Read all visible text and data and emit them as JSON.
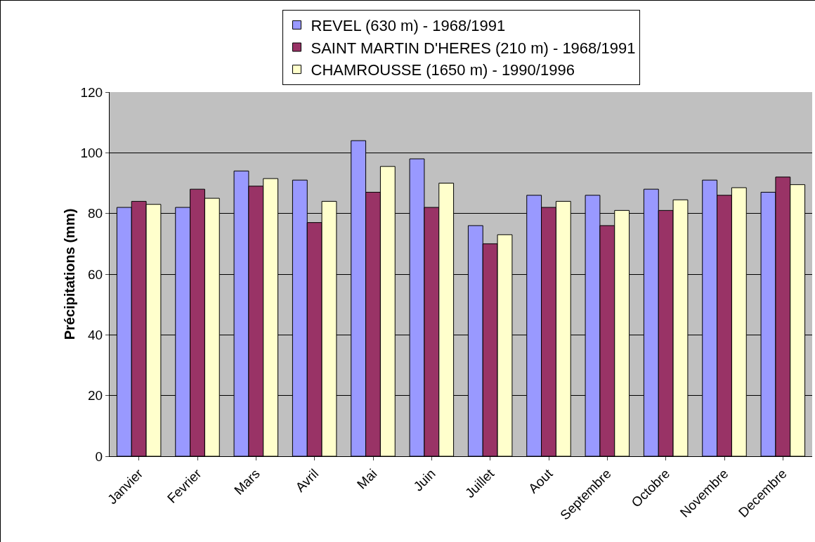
{
  "chart_data": {
    "type": "bar",
    "ylabel": "Précipitations (mm)",
    "categories": [
      "Janvier",
      "Fevrier",
      "Mars",
      "Avril",
      "Mai",
      "Juin",
      "Juillet",
      "Aout",
      "Septembre",
      "Octobre",
      "Novembre",
      "Decembre"
    ],
    "series": [
      {
        "name": "REVEL (630 m) - 1968/1991",
        "color": "#9999ff",
        "values": [
          82,
          82,
          94,
          91,
          104,
          98,
          76,
          86,
          86,
          88,
          91,
          87
        ]
      },
      {
        "name": "SAINT MARTIN D'HERES (210 m) - 1968/1991",
        "color": "#993366",
        "values": [
          84,
          88,
          89,
          77,
          87,
          82,
          70,
          82,
          76,
          81,
          86,
          92
        ]
      },
      {
        "name": "CHAMROUSSE (1650 m) - 1990/1996",
        "color": "#ffffcc",
        "values": [
          83,
          85,
          91.5,
          84,
          95.5,
          90,
          73,
          84,
          81,
          84.5,
          88.5,
          89.5
        ]
      }
    ],
    "ylim": [
      0,
      120
    ],
    "yticks": [
      0,
      20,
      40,
      60,
      80,
      100,
      120
    ],
    "grid": "y",
    "legend": "top"
  }
}
